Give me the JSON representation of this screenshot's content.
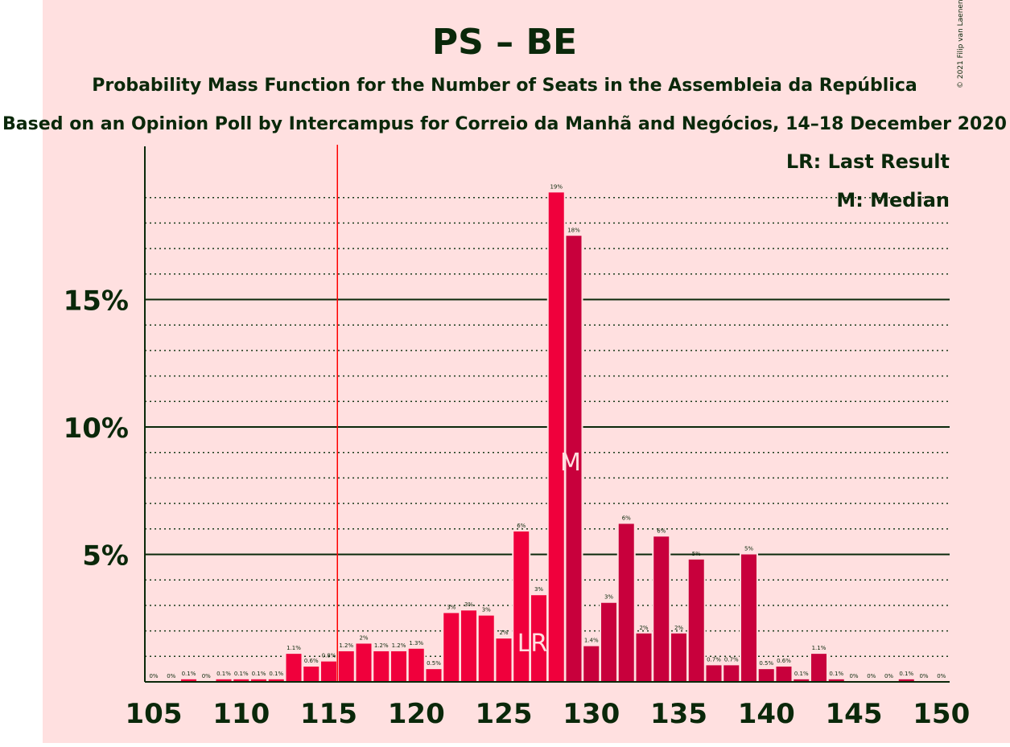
{
  "chart_data": {
    "type": "bar",
    "title": "PS – BE",
    "subtitle": "Probability Mass Function for the Number of Seats in the Assembleia da República",
    "subtitle2": "Based on an Opinion Poll by Intercampus for Correio da Manhã and Negócios, 14–18 December 2020",
    "copyright": "© 2021 Filip van Laenen",
    "legend": {
      "last_result": "LR: Last Result",
      "median": "M: Median",
      "placement": "top-right"
    },
    "x": [
      105,
      106,
      107,
      108,
      109,
      110,
      111,
      112,
      113,
      114,
      115,
      116,
      117,
      118,
      119,
      120,
      121,
      122,
      123,
      124,
      125,
      126,
      127,
      128,
      129,
      130,
      131,
      132,
      133,
      134,
      135,
      136,
      137,
      138,
      139,
      140,
      141,
      142,
      143,
      144,
      145,
      146,
      147,
      148,
      149,
      150
    ],
    "values": [
      0,
      0,
      0.1,
      0,
      0.1,
      0.1,
      0.1,
      0.1,
      1.1,
      0.6,
      0.8,
      1.2,
      1.5,
      1.2,
      1.2,
      1.3,
      0.5,
      2.7,
      2.8,
      2.6,
      1.7,
      5.9,
      3.4,
      19.2,
      17.5,
      1.4,
      3.1,
      6.2,
      1.9,
      5.7,
      1.9,
      4.8,
      0.65,
      0.65,
      5.0,
      0.5,
      0.6,
      0.1,
      1.1,
      0.1,
      0,
      0,
      0,
      0.1,
      0,
      0
    ],
    "labels": [
      "0%",
      "0%",
      "0.1%",
      "0%",
      "0.1%",
      "0.1%",
      "0.1%",
      "0.1%",
      "1.1%",
      "0.6%",
      "0.8%",
      "1.2%",
      "2%",
      "1.2%",
      "1.2%",
      "1.3%",
      "0.5%",
      "3%",
      "3%",
      "3%",
      "2%",
      "6%",
      "3%",
      "19%",
      "18%",
      "1.4%",
      "3%",
      "6%",
      "2%",
      "6%",
      "2%",
      "5%",
      "0.7%",
      "0.7%",
      "5%",
      "0.5%",
      "0.6%",
      "0.1%",
      "1.1%",
      "0.1%",
      "0%",
      "0%",
      "0%",
      "0.1%",
      "0%",
      "0%"
    ],
    "xticks": [
      105,
      110,
      115,
      120,
      125,
      130,
      135,
      140,
      145,
      150
    ],
    "yticks": [
      {
        "value": 5,
        "label": "5%"
      },
      {
        "value": 10,
        "label": "10%"
      },
      {
        "value": 15,
        "label": "15%"
      }
    ],
    "ylim": [
      0,
      21
    ],
    "majority_line": 116,
    "last_result": {
      "x": 127,
      "label": "LR"
    },
    "median": {
      "x": 129,
      "label": "M"
    },
    "grid": true,
    "colors": {
      "background": "#ffe0e0",
      "bar_left": "#f0003c",
      "bar_right": "#c8003c",
      "text": "#0a280a",
      "majority_line": "#ff0000",
      "marker_text": "#ffe0e0"
    }
  }
}
